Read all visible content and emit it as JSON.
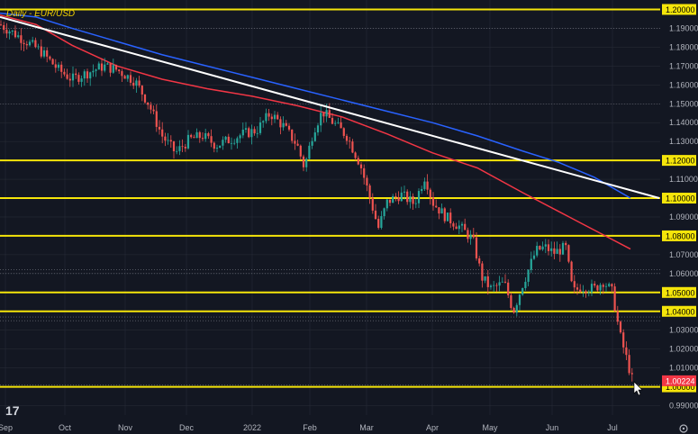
{
  "chart_data": {
    "type": "candlestick",
    "title": "Daily - EUR/USD",
    "x_ticks": [
      "Sep",
      "Oct",
      "Nov",
      "Dec",
      "2022",
      "Feb",
      "Mar",
      "Apr",
      "May",
      "Jun",
      "Jul"
    ],
    "y_ticks": [
      "1.20000",
      "1.19000",
      "1.18000",
      "1.17000",
      "1.16000",
      "1.15000",
      "1.14000",
      "1.13000",
      "1.12000",
      "1.11000",
      "1.10000",
      "1.09000",
      "1.08000",
      "1.07000",
      "1.06000",
      "1.05000",
      "1.04000",
      "1.03000",
      "1.02000",
      "1.01000",
      "1.00000",
      "0.99000"
    ],
    "ylim": [
      0.985,
      1.205
    ],
    "current_price": "1.00224",
    "horizontal_levels": [
      "1.20000",
      "1.12000",
      "1.10000",
      "1.08000",
      "1.05000",
      "1.04000",
      "1.00000"
    ],
    "series": [
      {
        "name": "",
        "kind": "moving-average",
        "color": "#2962ff",
        "values": [
          [
            0,
            1.198
          ],
          [
            40,
            1.196
          ],
          [
            80,
            1.19
          ],
          [
            130,
            1.183
          ],
          [
            180,
            1.176
          ],
          [
            230,
            1.17
          ],
          [
            280,
            1.164
          ],
          [
            330,
            1.158
          ],
          [
            380,
            1.152
          ],
          [
            430,
            1.146
          ],
          [
            480,
            1.14
          ],
          [
            530,
            1.133
          ],
          [
            580,
            1.125
          ],
          [
            620,
            1.119
          ],
          [
            660,
            1.111
          ],
          [
            700,
            1.1
          ]
        ]
      },
      {
        "name": "",
        "kind": "moving-average",
        "color": "#f23645",
        "values": [
          [
            0,
            1.197
          ],
          [
            40,
            1.192
          ],
          [
            80,
            1.181
          ],
          [
            130,
            1.17
          ],
          [
            180,
            1.163
          ],
          [
            230,
            1.158
          ],
          [
            280,
            1.154
          ],
          [
            330,
            1.149
          ],
          [
            380,
            1.143
          ],
          [
            430,
            1.134
          ],
          [
            480,
            1.124
          ],
          [
            530,
            1.116
          ],
          [
            580,
            1.103
          ],
          [
            620,
            1.093
          ],
          [
            660,
            1.083
          ],
          [
            700,
            1.073
          ]
        ]
      },
      {
        "name": "",
        "kind": "trendline",
        "color": "#ffffff",
        "values": [
          [
            0,
            1.196
          ],
          [
            732,
            1.1
          ]
        ]
      }
    ]
  },
  "chart_config": {
    "plot_right": 733,
    "colors": {
      "up": "#26a69a",
      "down": "#ef5350",
      "level": "#f5e50a",
      "background": "#131722",
      "grid": "#2a2e39",
      "axis_text": "#b2b5be",
      "price_tag": "#f23645",
      "dotted": "#787b86"
    }
  }
}
